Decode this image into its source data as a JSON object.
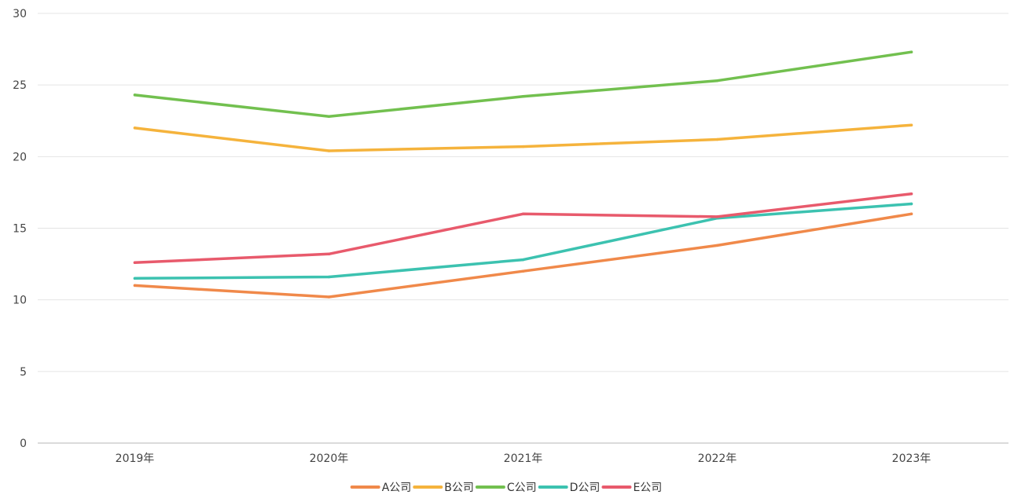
{
  "chart_data": {
    "type": "line",
    "title": "",
    "xlabel": "",
    "ylabel": "",
    "categories": [
      "2019年",
      "2020年",
      "2021年",
      "2022年",
      "2023年"
    ],
    "ylim": [
      0,
      30
    ],
    "yticks": [
      0,
      5,
      10,
      15,
      20,
      25,
      30
    ],
    "grid": true,
    "legend_position": "bottom-center",
    "series": [
      {
        "name": "A公司",
        "color": "#f0894a",
        "values": [
          11.0,
          10.2,
          12.0,
          13.8,
          16.0
        ]
      },
      {
        "name": "B公司",
        "color": "#f5b33c",
        "values": [
          22.0,
          20.4,
          20.7,
          21.2,
          22.2
        ]
      },
      {
        "name": "C公司",
        "color": "#72c04f",
        "values": [
          24.3,
          22.8,
          24.2,
          25.3,
          27.3
        ]
      },
      {
        "name": "D公司",
        "color": "#3cc2b0",
        "values": [
          11.5,
          11.6,
          12.8,
          15.7,
          16.7
        ]
      },
      {
        "name": "E公司",
        "color": "#e85a6c",
        "values": [
          12.6,
          13.2,
          16.0,
          15.8,
          17.4
        ]
      }
    ]
  }
}
